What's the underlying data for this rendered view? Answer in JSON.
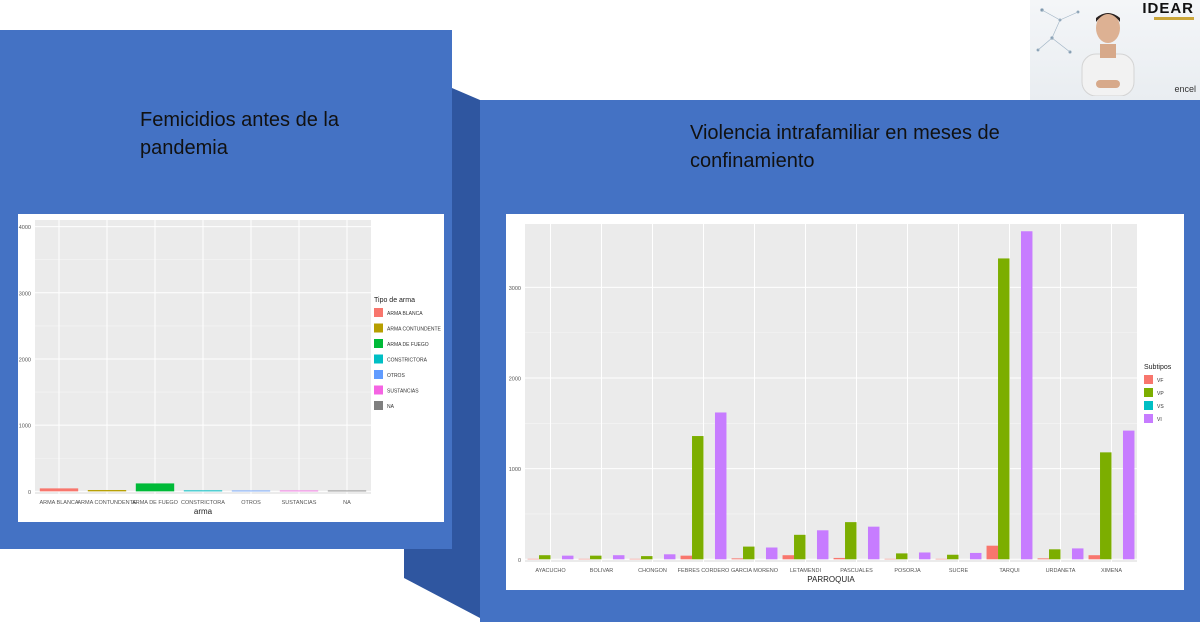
{
  "slides": {
    "left_title": "Femicidios antes de la pandemia",
    "right_title": "Violencia intrafamiliar en meses de confinamiento"
  },
  "webcam": {
    "logo": "IDEAR",
    "watermark": "encel"
  },
  "colors": {
    "panel_blue": "#4472c4",
    "plot_bg": "#ebebeb",
    "red": "#f8766d",
    "olive": "#b79f00",
    "green": "#00ba38",
    "cyan": "#00bfc4",
    "blue": "#619cff",
    "magenta": "#f564e3",
    "gray": "#7f7f7f",
    "vp": "#7cae00",
    "vi": "#c77cff"
  },
  "chart_data": [
    {
      "type": "bar",
      "title": "",
      "xlabel": "arma",
      "ylabel": "",
      "ylim": [
        -40,
        4100
      ],
      "yticks": [
        0,
        1000,
        2000,
        3000,
        4000
      ],
      "grid": true,
      "legend": {
        "title": "Tipo de arma",
        "position": "right",
        "entries": [
          "ARMA BLANCA",
          "ARMA CONTUNDENTE",
          "ARMA DE FUEGO",
          "CONSTRICTORA",
          "OTROS",
          "SUSTANCIAS",
          "NA"
        ]
      },
      "categories": [
        "ARMA BLANCA",
        "ARMA CONTUNDENTE",
        "ARMA DE FUEGO",
        "CONSTRICTORA",
        "OTROS",
        "SUSTANCIAS",
        "NA"
      ],
      "values": [
        45,
        20,
        120,
        15,
        3,
        2,
        1
      ],
      "bar_colors": [
        "#f8766d",
        "#b79f00",
        "#00ba38",
        "#00bfc4",
        "#619cff",
        "#f564e3",
        "#7f7f7f"
      ]
    },
    {
      "type": "bar",
      "title": "",
      "xlabel": "PARROQUIA",
      "ylabel": "",
      "ylim": [
        -30,
        3700
      ],
      "yticks": [
        0,
        1000,
        2000,
        3000
      ],
      "grid": true,
      "legend": {
        "title": "Subtipos",
        "position": "right",
        "entries": [
          "VF",
          "VP",
          "VS",
          "VI"
        ]
      },
      "categories": [
        "AYACUCHO",
        "BOLIVAR",
        "CHONGON",
        "FEBRES CORDERO",
        "GARCIA MORENO",
        "LETAMENDI",
        "PASCUALES",
        "POSORJA",
        "SUCRE",
        "TARQUI",
        "URDANETA",
        "XIMENA"
      ],
      "series": [
        {
          "name": "VF",
          "color": "#f8766d",
          "values": [
            5,
            5,
            5,
            40,
            10,
            45,
            15,
            5,
            5,
            150,
            10,
            45
          ]
        },
        {
          "name": "VP",
          "color": "#7cae00",
          "values": [
            45,
            40,
            35,
            1360,
            140,
            270,
            410,
            65,
            50,
            3320,
            110,
            1180
          ]
        },
        {
          "name": "VS",
          "color": "#00bfc4",
          "values": [
            0,
            0,
            0,
            0,
            0,
            0,
            0,
            0,
            0,
            0,
            0,
            0
          ]
        },
        {
          "name": "VI",
          "color": "#c77cff",
          "values": [
            40,
            45,
            55,
            1620,
            130,
            320,
            360,
            75,
            70,
            3620,
            120,
            1420
          ]
        }
      ]
    }
  ]
}
